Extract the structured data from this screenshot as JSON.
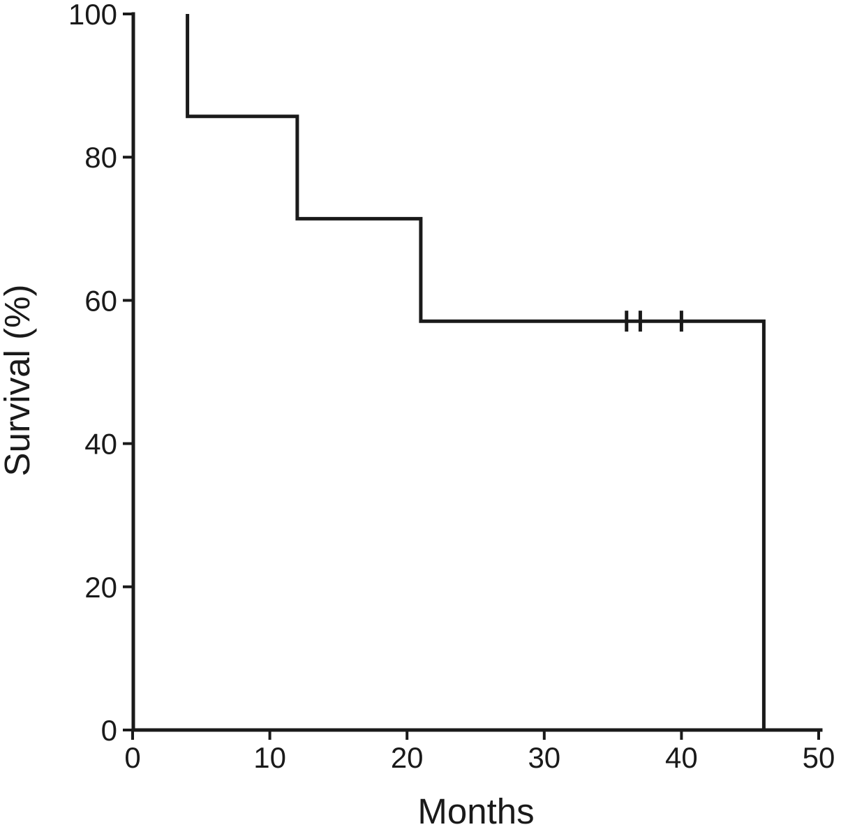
{
  "chart_data": {
    "type": "line",
    "subtype": "kaplan-meier-step",
    "title": "",
    "xlabel": "Months",
    "ylabel": "Survival (%)",
    "xlim": [
      0,
      50
    ],
    "ylim": [
      0,
      100
    ],
    "x_ticks": [
      0,
      10,
      20,
      30,
      40,
      50
    ],
    "y_ticks": [
      0,
      20,
      40,
      60,
      80,
      100
    ],
    "grid": false,
    "legend_position": "none",
    "line_color": "#1a1a1a",
    "background_color": "#ffffff",
    "series": [
      {
        "name": "Survival",
        "step_points": [
          {
            "x": 4,
            "y": 100
          },
          {
            "x": 4,
            "y": 85.7
          },
          {
            "x": 12,
            "y": 85.7
          },
          {
            "x": 12,
            "y": 71.4
          },
          {
            "x": 21,
            "y": 71.4
          },
          {
            "x": 21,
            "y": 57.1
          },
          {
            "x": 46,
            "y": 57.1
          },
          {
            "x": 46,
            "y": 0
          }
        ],
        "censor_marks": [
          {
            "x": 36,
            "y": 57.1
          },
          {
            "x": 37,
            "y": 57.1
          },
          {
            "x": 40,
            "y": 57.1
          }
        ]
      }
    ]
  }
}
